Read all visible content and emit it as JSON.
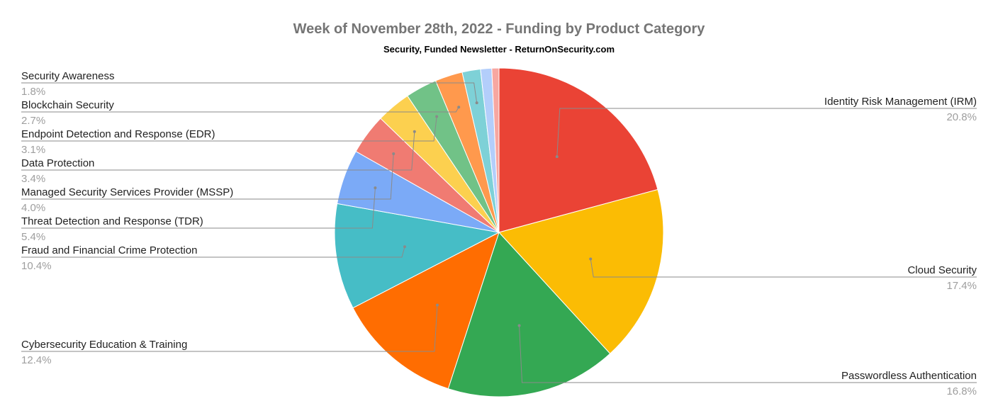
{
  "chart_data": {
    "type": "pie",
    "title": "Week of November 28th, 2022 - Funding by Product Category",
    "subtitle": "Security, Funded Newsletter - ReturnOnSecurity.com",
    "slices": [
      {
        "label": "Identity Risk Management (IRM)",
        "value_label": "20.8%",
        "value": 20.8,
        "color": "#EA4335"
      },
      {
        "label": "Cloud Security",
        "value_label": "17.4%",
        "value": 17.4,
        "color": "#FBBC04"
      },
      {
        "label": "Passwordless Authentication",
        "value_label": "16.8%",
        "value": 16.8,
        "color": "#34A853"
      },
      {
        "label": "Cybersecurity Education & Training",
        "value_label": "12.4%",
        "value": 12.4,
        "color": "#FF6D01"
      },
      {
        "label": "Fraud and Financial Crime Protection",
        "value_label": "10.4%",
        "value": 10.4,
        "color": "#46BDC6"
      },
      {
        "label": "Threat Detection and Response (TDR)",
        "value_label": "5.4%",
        "value": 5.4,
        "color": "#7BAAF7"
      },
      {
        "label": "Managed Security Services Provider (MSSP)",
        "value_label": "4.0%",
        "value": 4.0,
        "color": "#F07B72"
      },
      {
        "label": "Data Protection",
        "value_label": "3.4%",
        "value": 3.4,
        "color": "#FCD04F"
      },
      {
        "label": "Endpoint Detection and Response (EDR)",
        "value_label": "3.1%",
        "value": 3.1,
        "color": "#71C287"
      },
      {
        "label": "Blockchain Security",
        "value_label": "2.7%",
        "value": 2.7,
        "color": "#FF994D"
      },
      {
        "label": "Security Awareness",
        "value_label": "1.8%",
        "value": 1.8,
        "color": "#7ED1D7"
      },
      {
        "label": "",
        "value_label": "",
        "value": 1.1,
        "color": "#B3CEFB"
      },
      {
        "label": "",
        "value_label": "",
        "value": 0.7,
        "color": "#F7A7A1"
      }
    ],
    "legend": "none"
  }
}
